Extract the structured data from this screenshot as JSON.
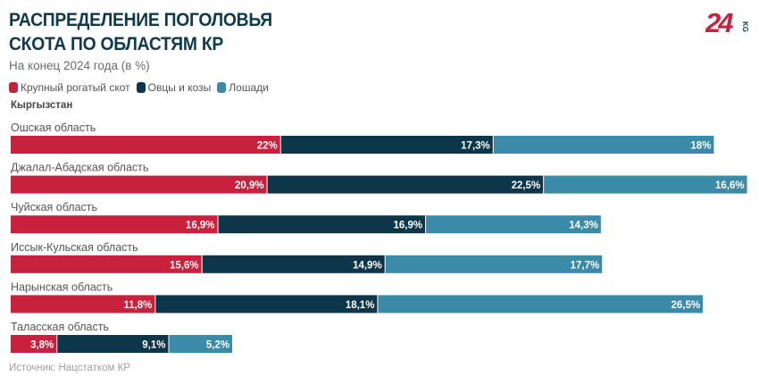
{
  "header": {
    "title_line1": "РАСПРЕДЕЛЕНИЕ ПОГОЛОВЬЯ",
    "title_line2": "СКОТА ПО ОБЛАСТЯМ КР",
    "subtitle": "На конец 2024 года (в %)",
    "logo_text": "24",
    "logo_suffix": "KG"
  },
  "group_label": "Кыргызстан",
  "source": "Источник: Нацстатком КР",
  "colors": {
    "cattle": "#c8213e",
    "sheep_goats": "#0d364a",
    "horses": "#3b8aa8",
    "logo": "#c8213e"
  },
  "chart_data": {
    "type": "bar",
    "orientation": "horizontal",
    "stacked": true,
    "title": "РАСПРЕДЕЛЕНИЕ ПОГОЛОВЬЯ СКОТА ПО ОБЛАСТЯМ КР",
    "subtitle": "На конец 2024 года (в %)",
    "xlabel": "",
    "ylabel": "",
    "unit": "%",
    "grid": false,
    "legend_position": "top-left",
    "categories": [
      "Ошская область",
      "Джалал-Абадская область",
      "Чуйская область",
      "Иссык-Кульская область",
      "Нарынская область",
      "Таласская область"
    ],
    "series": [
      {
        "name": "Крупный рогатый скот",
        "color": "#c8213e",
        "values": [
          22,
          20.9,
          16.9,
          15.6,
          11.8,
          3.8
        ],
        "labels": [
          "22%",
          "20,9%",
          "16,9%",
          "15,6%",
          "11,8%",
          "3,8%"
        ]
      },
      {
        "name": "Овцы и козы",
        "color": "#0d364a",
        "values": [
          17.3,
          22.5,
          16.9,
          14.9,
          18.1,
          9.1
        ],
        "labels": [
          "17,3%",
          "22,5%",
          "16,9%",
          "14,9%",
          "18,1%",
          "9,1%"
        ]
      },
      {
        "name": "Лошади",
        "color": "#3b8aa8",
        "values": [
          18,
          16.6,
          14.3,
          17.7,
          26.5,
          5.2
        ],
        "labels": [
          "18%",
          "16,6%",
          "14,3%",
          "17,7%",
          "26,5%",
          "5,2%"
        ]
      }
    ]
  }
}
